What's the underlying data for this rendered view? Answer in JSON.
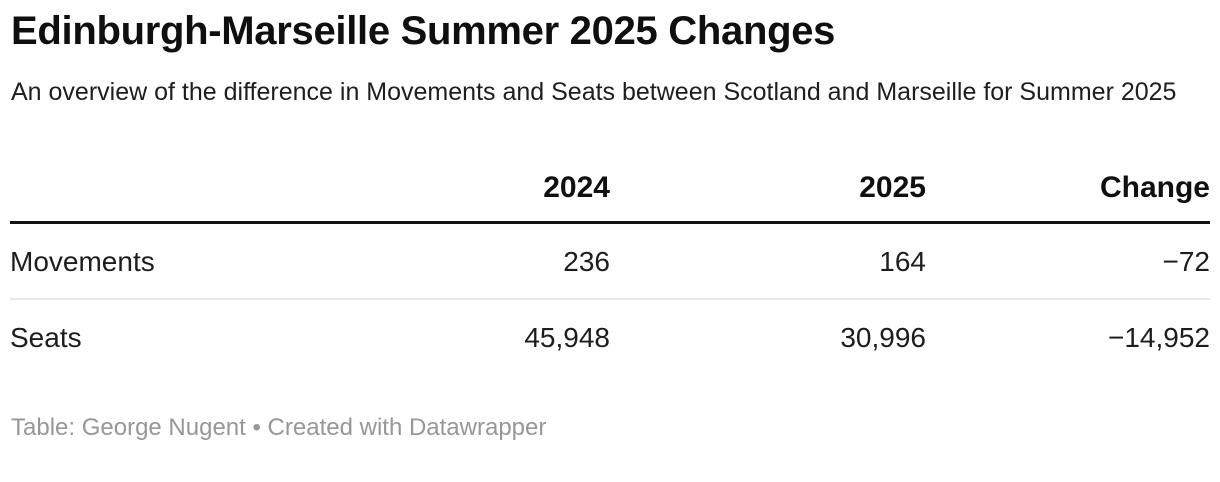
{
  "header": {
    "title": "Edinburgh-Marseille Summer 2025 Changes",
    "subtitle": "An overview of the difference in Movements and Seats between Scotland and Marseille for Summer 2025"
  },
  "table": {
    "column_headers": [
      "2024",
      "2025",
      "Change"
    ],
    "rows": [
      {
        "label": "Movements",
        "cells": [
          "236",
          "164",
          "−72"
        ]
      },
      {
        "label": "Seats",
        "cells": [
          "45,948",
          "30,996",
          "−14,952"
        ]
      }
    ]
  },
  "footer": {
    "credit": "Table: George Nugent • Created with Datawrapper"
  },
  "colors": {
    "body_text": "#1d1d1d",
    "title_text": "#0f0f0f",
    "header_border": "#131313",
    "row_divider": "#e9e9e9",
    "footer_text": "#979797",
    "background": "#ffffff"
  },
  "chart_data": {
    "type": "table",
    "title": "Edinburgh-Marseille Summer 2025 Changes",
    "subtitle": "An overview of the difference in Movements and Seats between Scotland and Marseille for Summer 2025",
    "columns": [
      "2024",
      "2025",
      "Change"
    ],
    "rows": [
      {
        "label": "Movements",
        "values": [
          236,
          164,
          -72
        ]
      },
      {
        "label": "Seats",
        "values": [
          45948,
          30996,
          -14952
        ]
      }
    ],
    "credit": "Table: George Nugent • Created with Datawrapper"
  }
}
